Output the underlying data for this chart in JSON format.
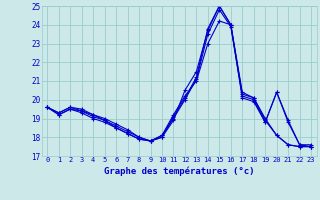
{
  "title": "Graphe des températures (°c)",
  "bg_color": "#cce8e8",
  "grid_color": "#99cccc",
  "line_color": "#0000cc",
  "xlim": [
    -0.5,
    23.5
  ],
  "ylim": [
    17,
    25
  ],
  "yticks": [
    17,
    18,
    19,
    20,
    21,
    22,
    23,
    24,
    25
  ],
  "xticks": [
    0,
    1,
    2,
    3,
    4,
    5,
    6,
    7,
    8,
    9,
    10,
    11,
    12,
    13,
    14,
    15,
    16,
    17,
    18,
    19,
    20,
    21,
    22,
    23
  ],
  "lines": [
    {
      "x": [
        0,
        1,
        2,
        3,
        4,
        5,
        6,
        7,
        8,
        9,
        10,
        11,
        12,
        13,
        14,
        15,
        16,
        17,
        18,
        19,
        20,
        21,
        22,
        23
      ],
      "y": [
        19.6,
        19.3,
        19.6,
        19.5,
        19.2,
        19.0,
        18.7,
        18.4,
        18.0,
        17.8,
        18.0,
        18.9,
        20.5,
        21.5,
        23.7,
        25.0,
        24.0,
        20.4,
        20.1,
        19.0,
        18.1,
        17.6,
        17.5,
        17.5
      ]
    },
    {
      "x": [
        0,
        1,
        2,
        3,
        4,
        5,
        6,
        7,
        8,
        9,
        10,
        11,
        12,
        13,
        14,
        15,
        16,
        17,
        18,
        19,
        20,
        21,
        22,
        23
      ],
      "y": [
        19.6,
        19.3,
        19.6,
        19.4,
        19.2,
        18.9,
        18.6,
        18.3,
        18.0,
        17.8,
        18.1,
        19.2,
        20.2,
        21.0,
        23.0,
        24.2,
        24.0,
        20.3,
        20.1,
        18.9,
        18.1,
        17.6,
        17.5,
        17.5
      ]
    },
    {
      "x": [
        0,
        1,
        2,
        3,
        4,
        5,
        6,
        7,
        8,
        9,
        10,
        11,
        12,
        13,
        14,
        15,
        16,
        17,
        18,
        19,
        20,
        21,
        22,
        23
      ],
      "y": [
        19.6,
        19.2,
        19.5,
        19.3,
        19.0,
        18.8,
        18.5,
        18.2,
        17.9,
        17.8,
        18.1,
        19.0,
        20.0,
        21.1,
        23.5,
        24.8,
        23.9,
        20.2,
        20.0,
        18.8,
        20.4,
        18.9,
        17.6,
        17.5
      ]
    },
    {
      "x": [
        0,
        1,
        2,
        3,
        4,
        5,
        6,
        7,
        8,
        9,
        10,
        11,
        12,
        13,
        14,
        15,
        16,
        17,
        18,
        19,
        20,
        21,
        22,
        23
      ],
      "y": [
        19.6,
        19.2,
        19.5,
        19.4,
        19.1,
        18.9,
        18.5,
        18.2,
        17.9,
        17.8,
        18.0,
        19.1,
        20.1,
        21.2,
        23.8,
        25.0,
        24.0,
        20.1,
        19.9,
        18.8,
        20.4,
        18.8,
        17.6,
        17.6
      ]
    }
  ]
}
